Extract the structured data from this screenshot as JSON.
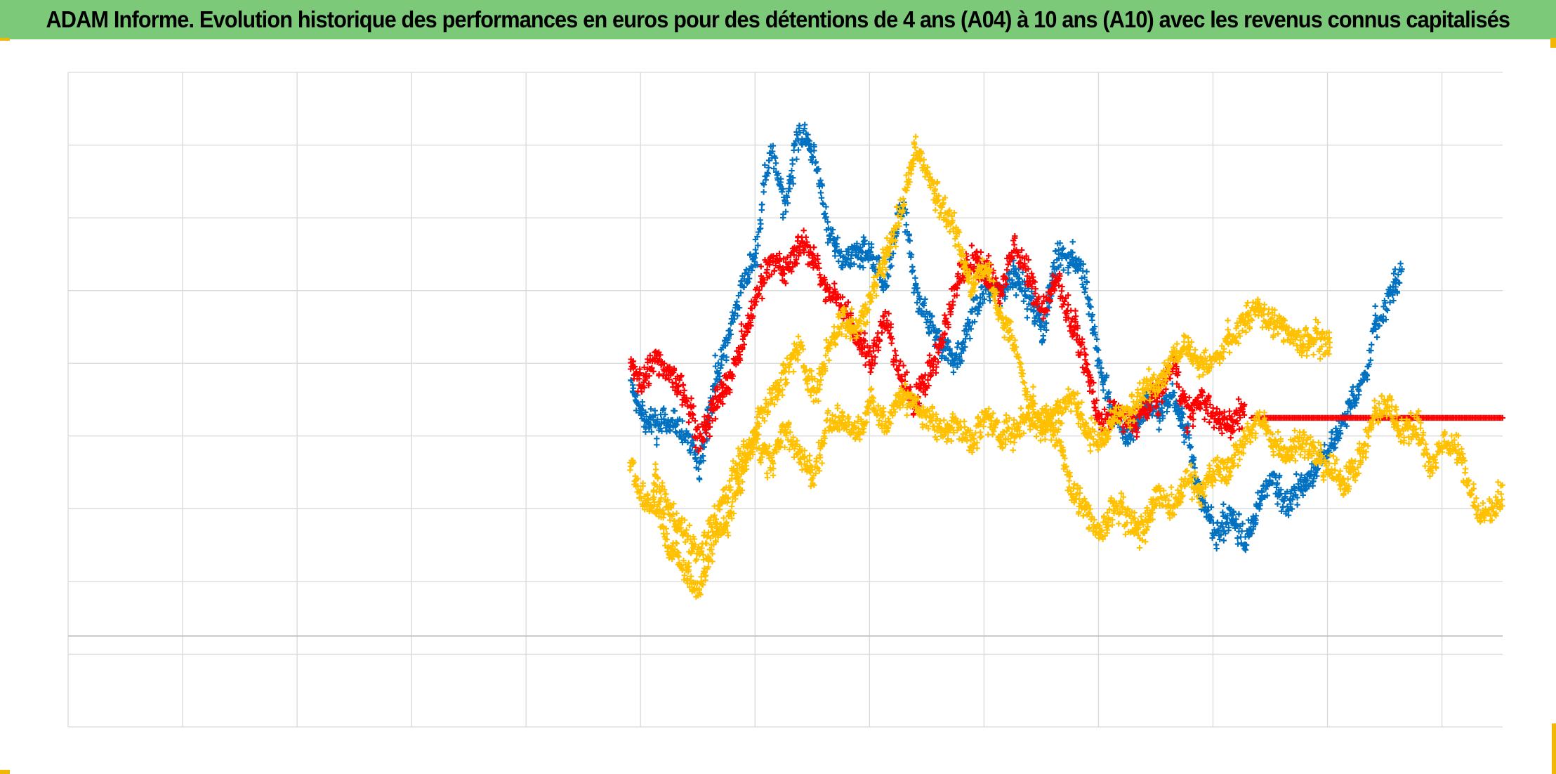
{
  "chart_data": {
    "type": "scatter",
    "title": "ADAM Informe. Evolution historique des performances en euros pour des détentions de 4 ans (A04) à 10 ans (A10) avec les revenus connus capitalisés",
    "xlabel": "",
    "ylabel": "",
    "x_range": [
      0,
      100
    ],
    "y_range": [
      -12.5,
      77.5
    ],
    "x_gridlines": 13,
    "y_gridlines": 9,
    "grid": true,
    "legend": "none",
    "marker": "plus",
    "series": [
      {
        "color": "#0070c0",
        "points": [
          [
            39.2,
            35
          ],
          [
            40,
            30
          ],
          [
            41,
            29
          ],
          [
            42,
            30
          ],
          [
            43,
            28
          ],
          [
            44,
            23
          ],
          [
            44.5,
            29
          ],
          [
            45,
            34
          ],
          [
            46,
            41
          ],
          [
            47,
            48
          ],
          [
            48,
            53
          ],
          [
            48.5,
            62
          ],
          [
            49,
            67
          ],
          [
            50,
            59
          ],
          [
            51,
            70
          ],
          [
            52,
            66
          ],
          [
            53,
            56
          ],
          [
            54,
            51
          ],
          [
            55,
            53
          ],
          [
            56,
            52
          ],
          [
            57,
            48
          ],
          [
            58,
            59
          ],
          [
            58.5,
            56
          ],
          [
            59,
            48
          ],
          [
            60,
            43
          ],
          [
            61,
            40
          ],
          [
            62,
            38
          ],
          [
            63,
            44
          ],
          [
            64,
            48
          ],
          [
            65,
            47
          ],
          [
            66,
            50
          ],
          [
            67,
            46
          ],
          [
            68,
            42
          ],
          [
            69,
            53
          ],
          [
            70,
            52
          ],
          [
            71,
            48
          ],
          [
            72,
            36
          ],
          [
            73,
            30
          ],
          [
            74,
            27
          ],
          [
            75,
            32
          ],
          [
            76,
            31
          ],
          [
            77,
            33
          ],
          [
            78,
            28
          ],
          [
            79,
            18
          ],
          [
            80,
            14
          ],
          [
            81,
            17
          ],
          [
            82,
            13
          ],
          [
            83,
            18
          ],
          [
            84,
            22
          ],
          [
            85,
            18
          ],
          [
            86,
            21
          ],
          [
            87,
            23
          ],
          [
            88,
            26
          ],
          [
            89,
            30
          ],
          [
            90,
            34
          ],
          [
            90.5,
            36
          ],
          [
            91,
            42
          ],
          [
            92,
            46
          ],
          [
            93,
            50
          ]
        ]
      },
      {
        "color": "#ff0000",
        "points": [
          [
            39.2,
            37
          ],
          [
            40,
            35
          ],
          [
            41,
            38
          ],
          [
            42,
            36
          ],
          [
            43,
            33
          ],
          [
            44,
            27
          ],
          [
            45,
            31
          ],
          [
            46,
            35
          ],
          [
            47,
            40
          ],
          [
            48,
            47
          ],
          [
            49,
            52
          ],
          [
            50,
            50
          ],
          [
            51,
            54
          ],
          [
            52,
            52
          ],
          [
            53,
            47
          ],
          [
            54,
            46
          ],
          [
            55,
            41
          ],
          [
            56,
            38
          ],
          [
            57,
            44
          ],
          [
            58,
            36
          ],
          [
            59,
            32
          ],
          [
            60,
            36
          ],
          [
            61,
            41
          ],
          [
            62,
            49
          ],
          [
            63,
            52
          ],
          [
            64,
            50
          ],
          [
            65,
            47
          ],
          [
            66,
            54
          ],
          [
            67,
            49
          ],
          [
            68,
            45
          ],
          [
            69,
            49
          ],
          [
            70,
            43
          ],
          [
            71,
            37
          ],
          [
            72,
            29
          ],
          [
            73,
            31
          ],
          [
            74,
            29
          ],
          [
            75,
            31
          ],
          [
            76,
            33
          ],
          [
            77,
            38
          ],
          [
            78,
            31
          ],
          [
            79,
            32
          ],
          [
            80,
            30
          ],
          [
            81,
            29
          ],
          [
            82,
            31
          ]
        ]
      },
      {
        "color": "#ff0000",
        "points": [
          [
            82.5,
            30
          ],
          [
            100,
            30
          ]
        ]
      },
      {
        "color": "#ffc000",
        "points": [
          [
            39.2,
            23
          ],
          [
            40,
            19
          ],
          [
            41,
            18
          ],
          [
            42,
            12
          ],
          [
            43,
            9
          ],
          [
            44,
            6
          ],
          [
            45,
            13
          ],
          [
            46,
            16
          ],
          [
            47,
            22
          ],
          [
            48,
            29
          ],
          [
            49,
            33
          ],
          [
            50,
            36
          ],
          [
            51,
            40
          ],
          [
            52,
            33
          ],
          [
            53,
            39
          ],
          [
            54,
            44
          ],
          [
            55,
            42
          ],
          [
            56,
            47
          ],
          [
            57,
            52
          ],
          [
            58,
            58
          ],
          [
            59,
            67
          ],
          [
            60,
            63
          ],
          [
            61,
            59
          ],
          [
            62,
            55
          ],
          [
            63,
            48
          ],
          [
            64,
            51
          ],
          [
            65,
            44
          ],
          [
            66,
            40
          ],
          [
            67,
            32
          ],
          [
            68,
            30
          ],
          [
            69,
            27
          ],
          [
            70,
            20
          ],
          [
            71,
            17
          ],
          [
            72,
            14
          ],
          [
            73,
            18
          ],
          [
            74,
            16
          ],
          [
            75,
            14
          ],
          [
            76,
            20
          ],
          [
            77,
            17
          ],
          [
            78,
            22
          ],
          [
            79,
            20
          ],
          [
            80,
            23
          ],
          [
            81,
            23
          ],
          [
            82,
            27
          ],
          [
            83,
            30
          ],
          [
            84,
            27
          ],
          [
            85,
            25
          ],
          [
            86,
            27
          ],
          [
            87,
            25
          ],
          [
            88,
            23
          ],
          [
            89,
            21
          ],
          [
            90,
            24
          ],
          [
            91,
            30
          ],
          [
            92,
            32
          ],
          [
            93,
            28
          ],
          [
            94,
            29
          ],
          [
            95,
            23
          ],
          [
            96,
            27
          ],
          [
            97,
            25
          ],
          [
            98,
            19
          ],
          [
            98.5,
            16
          ],
          [
            99,
            17
          ],
          [
            100,
            20
          ]
        ]
      },
      {
        "color": "#ffc000",
        "points": [
          [
            40.8,
            21
          ],
          [
            44,
            11
          ],
          [
            45,
            16
          ],
          [
            46,
            20
          ],
          [
            47,
            25
          ],
          [
            48,
            27
          ],
          [
            49,
            24
          ],
          [
            50,
            28
          ],
          [
            52,
            22
          ],
          [
            53,
            29
          ],
          [
            54,
            30
          ],
          [
            55,
            28
          ],
          [
            56,
            32
          ],
          [
            57,
            29
          ],
          [
            58,
            33
          ],
          [
            59,
            32
          ],
          [
            60,
            30
          ],
          [
            61,
            28
          ],
          [
            62,
            29
          ],
          [
            63,
            27
          ],
          [
            64,
            30
          ],
          [
            65,
            28
          ],
          [
            66,
            28
          ],
          [
            67,
            30
          ],
          [
            68,
            29
          ],
          [
            69,
            31
          ],
          [
            70,
            33
          ],
          [
            71,
            28
          ],
          [
            72,
            27
          ],
          [
            73,
            30
          ],
          [
            74,
            31
          ],
          [
            75,
            34
          ],
          [
            76,
            35
          ],
          [
            77,
            38
          ],
          [
            78,
            40
          ],
          [
            79,
            37
          ],
          [
            80,
            38
          ],
          [
            81,
            41
          ],
          [
            82,
            43
          ],
          [
            83,
            45
          ],
          [
            84,
            43
          ],
          [
            85,
            42
          ],
          [
            86,
            40
          ],
          [
            87,
            41
          ],
          [
            88,
            40
          ]
        ]
      }
    ]
  }
}
